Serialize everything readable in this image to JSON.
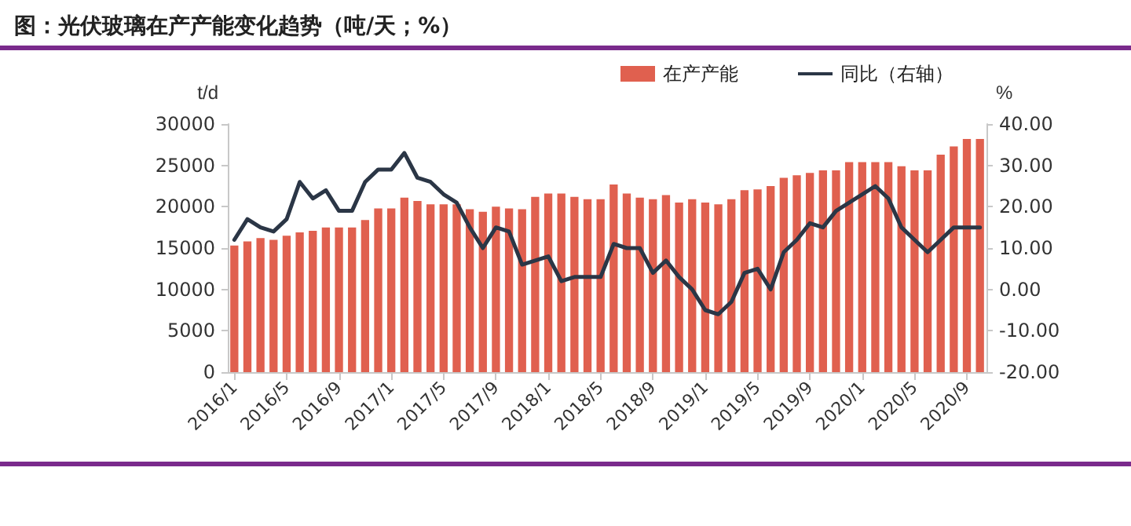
{
  "chart_data": {
    "type": "bar",
    "title": "图：光伏玻璃在产产能变化趋势（吨/天；%）",
    "ylabel": "t/d",
    "y2label": "%",
    "categories": [
      "2016/1",
      null,
      null,
      null,
      "2016/5",
      null,
      null,
      null,
      "2016/9",
      null,
      null,
      null,
      "2017/1",
      null,
      null,
      null,
      "2017/5",
      null,
      null,
      null,
      "2017/9",
      null,
      null,
      null,
      "2018/1",
      null,
      null,
      null,
      "2018/5",
      null,
      null,
      null,
      "2018/9",
      null,
      null,
      null,
      "2019/1",
      null,
      null,
      null,
      "2019/5",
      null,
      null,
      null,
      "2019/9",
      null,
      null,
      null,
      "2020/1",
      null,
      null,
      null,
      "2020/5",
      null,
      null,
      null,
      "2020/9",
      null
    ],
    "series": [
      {
        "name": "在产产能",
        "color": "#e0604f",
        "values": [
          15300,
          15800,
          16200,
          16000,
          16500,
          16900,
          17100,
          17500,
          17500,
          17500,
          18400,
          19800,
          19800,
          21100,
          20700,
          20300,
          20300,
          20300,
          19700,
          19400,
          20000,
          19800,
          19700,
          21200,
          21600,
          21600,
          21200,
          20900,
          20900,
          22700,
          21600,
          21100,
          20900,
          21400,
          20500,
          20900,
          20500,
          20300,
          20900,
          22000,
          22100,
          22500,
          23500,
          23800,
          24100,
          24400,
          24400,
          25400,
          25400,
          25400,
          25400,
          24900,
          24400,
          24400,
          26300,
          27300,
          28200,
          28200
        ]
      },
      {
        "name": "同比（右轴）",
        "type": "line",
        "axis": "y2",
        "color": "#2b3646",
        "values": [
          12,
          17,
          15,
          14,
          17,
          26,
          22,
          24,
          19,
          19,
          26,
          29,
          29,
          33,
          27,
          26,
          23,
          21,
          15,
          10,
          15,
          14,
          6,
          7,
          8,
          2,
          3,
          3,
          3,
          11,
          10,
          10,
          4,
          7,
          3,
          0,
          -5,
          -6,
          -3,
          4,
          5,
          0,
          9,
          12,
          16,
          15,
          19,
          21,
          23,
          25,
          22,
          15,
          12,
          9,
          12,
          15,
          15,
          15
        ]
      }
    ],
    "ylim": [
      0,
      30000
    ],
    "yticks": [
      0,
      5000,
      10000,
      15000,
      20000,
      25000,
      30000
    ],
    "y2lim": [
      -20,
      40
    ],
    "y2ticks": [
      {
        "value": -20,
        "label": "-20.00"
      },
      {
        "value": -10,
        "label": "-10.00"
      },
      {
        "value": 0,
        "label": "0.00"
      },
      {
        "value": 10,
        "label": "10.00"
      },
      {
        "value": 20,
        "label": "20.00"
      },
      {
        "value": 30,
        "label": "30.00"
      },
      {
        "value": 40,
        "label": "40.00"
      }
    ],
    "legend": "top",
    "marker": "none"
  }
}
